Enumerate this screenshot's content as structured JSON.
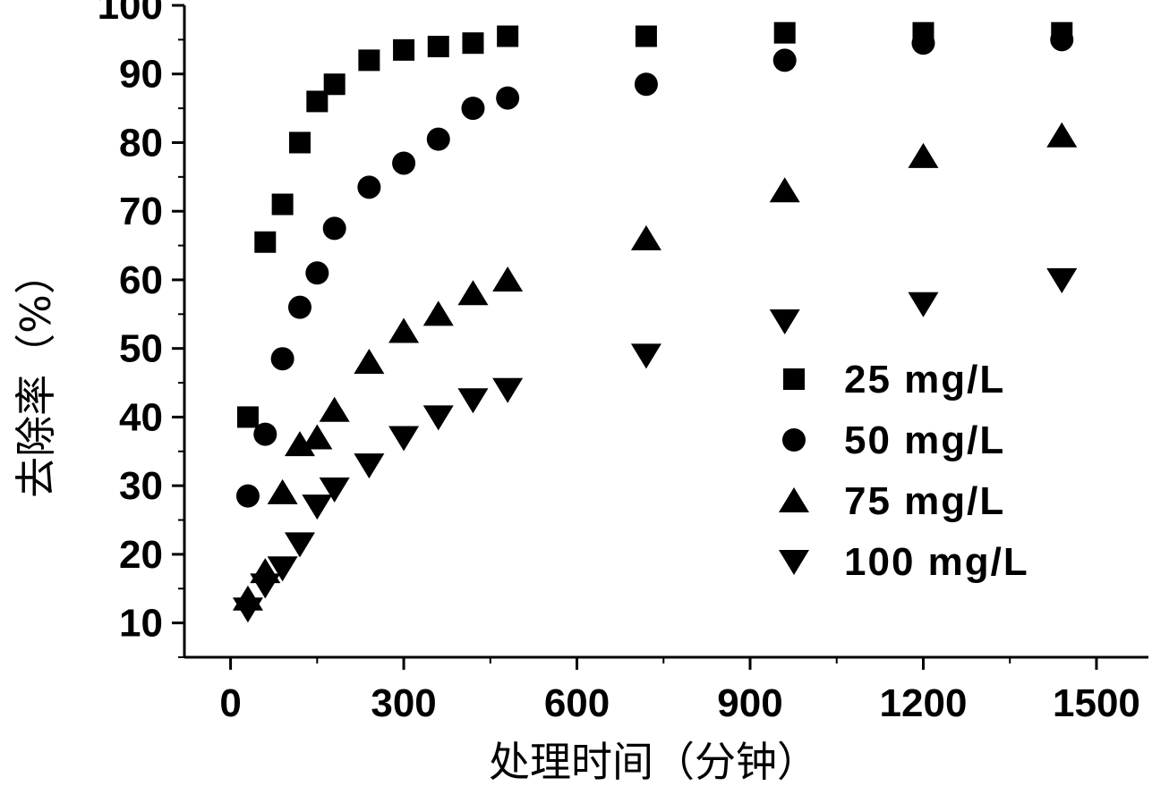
{
  "chart_data": {
    "type": "scatter",
    "title": "",
    "xlabel": "处理时间（分钟）",
    "ylabel": "去除率（%）",
    "xlim": [
      -80,
      1590
    ],
    "ylim": [
      5,
      100
    ],
    "xticks": [
      0,
      300,
      600,
      900,
      1200,
      1500
    ],
    "yticks": [
      10,
      20,
      30,
      40,
      50,
      60,
      70,
      80,
      90,
      100
    ],
    "grid": false,
    "legend_position": "center-right",
    "marker_color": "#000000",
    "series": [
      {
        "name": "25 mg/L",
        "marker": "square",
        "x": [
          30,
          60,
          90,
          120,
          150,
          180,
          240,
          300,
          360,
          420,
          480,
          720,
          960,
          1200,
          1440
        ],
        "y": [
          40,
          65.5,
          71,
          80,
          86,
          88.5,
          92,
          93.5,
          94,
          94.5,
          95.5,
          95.5,
          96,
          96,
          96
        ]
      },
      {
        "name": "50 mg/L",
        "marker": "circle",
        "x": [
          30,
          60,
          90,
          120,
          150,
          180,
          240,
          300,
          360,
          420,
          480,
          720,
          960,
          1200,
          1440
        ],
        "y": [
          28.5,
          37.5,
          48.5,
          56,
          61,
          67.5,
          73.5,
          77,
          80.5,
          85,
          86.5,
          88.5,
          92,
          94.5,
          95
        ]
      },
      {
        "name": "75 mg/L",
        "marker": "triangle-up",
        "x": [
          30,
          60,
          90,
          120,
          150,
          180,
          240,
          300,
          360,
          420,
          480,
          720,
          960,
          1200,
          1440
        ],
        "y": [
          13.5,
          17.5,
          29,
          36,
          37,
          41,
          48,
          52.5,
          55,
          58,
          60,
          66,
          73,
          78,
          81
        ]
      },
      {
        "name": "100 mg/L",
        "marker": "triangle-down",
        "x": [
          30,
          60,
          90,
          120,
          150,
          180,
          240,
          300,
          360,
          420,
          480,
          720,
          960,
          1200,
          1440
        ],
        "y": [
          12,
          15.5,
          18,
          21.5,
          27,
          29.5,
          33,
          37,
          40,
          42.5,
          44,
          49,
          54,
          56.5,
          60
        ]
      }
    ]
  }
}
